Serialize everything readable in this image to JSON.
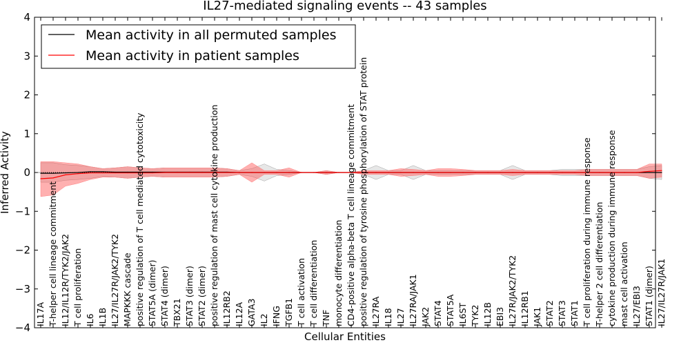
{
  "chart_data": {
    "type": "line",
    "title": "IL27-mediated signaling events -- 43 samples",
    "xlabel": "Cellular Entities",
    "ylabel": "Inferred Activity",
    "ylim": [
      -4,
      4
    ],
    "yticks": [
      "−4",
      "−3",
      "−2",
      "−1",
      "0",
      "1",
      "2",
      "3",
      "4"
    ],
    "legend_position": "top-left",
    "categories": [
      "IL17A",
      "T-helper cell lineage commitment",
      "IL12/IL12R/TYK2/JAK2",
      "T cell proliferation",
      "IL6",
      "IL1B",
      "IL27/IL27R/JAK2/TYK2",
      "MAPKKK cascade",
      "positive regulation of T cell mediated cytotoxicity",
      "STAT5A (dimer)",
      "STAT4 (dimer)",
      "TBX21",
      "STAT3 (dimer)",
      "STAT2 (dimer)",
      "positive regulation of mast cell cytokine production",
      "IL12RB2",
      "IL12A",
      "GATA3",
      "IL2",
      "IFNG",
      "TGFB1",
      "T cell activation",
      "T cell differentiation",
      "TNF",
      "monocyte differentiation",
      "CD4-positive alpha-beta T cell lineage commitment",
      "positive regulation of tyrosine phosphorylation of STAT protein",
      "IL27RA",
      "IL18",
      "IL27",
      "IL27RA/JAK1",
      "JAK2",
      "STAT4",
      "STAT5A",
      "IL6ST",
      "TYK2",
      "IL12B",
      "EBI3",
      "IL27R/JAK2/TYK2",
      "IL12RB1",
      "JAK1",
      "STAT2",
      "STAT3",
      "STAT1",
      "T cell proliferation during immune response",
      "T-helper 2 cell differentiation",
      "cytokine production during immune response",
      "mast cell activation",
      "IL27/EBI3",
      "STAT1 (dimer)",
      "IL27/IL27R/JAK1"
    ],
    "series": [
      {
        "name": "Mean activity in all permuted samples",
        "color": "#000000",
        "values": [
          -0.02,
          -0.02,
          -0.01,
          0.0,
          0.02,
          0.02,
          0.01,
          0.01,
          0.01,
          0.01,
          0.01,
          0.01,
          0.01,
          0.01,
          0.01,
          0.01,
          0.0,
          0.0,
          0.0,
          0.0,
          0.0,
          0.0,
          0.0,
          0.0,
          0.0,
          0.0,
          0.0,
          0.0,
          0.0,
          0.0,
          0.0,
          0.0,
          0.0,
          0.0,
          0.0,
          0.0,
          0.0,
          0.0,
          0.0,
          0.0,
          0.0,
          0.0,
          0.0,
          0.0,
          0.0,
          0.0,
          0.0,
          0.0,
          0.0,
          0.0,
          0.0
        ],
        "band_upper": [
          0.25,
          0.25,
          0.2,
          0.18,
          0.15,
          0.1,
          0.12,
          0.15,
          0.12,
          0.1,
          0.12,
          0.12,
          0.12,
          0.12,
          0.12,
          0.1,
          0.05,
          0.1,
          0.22,
          0.08,
          0.05,
          0.0,
          0.0,
          0.05,
          0.0,
          0.0,
          0.05,
          0.18,
          0.05,
          0.05,
          0.18,
          0.05,
          0.05,
          0.05,
          0.05,
          0.05,
          0.05,
          0.05,
          0.18,
          0.05,
          0.05,
          0.05,
          0.08,
          0.08,
          0.08,
          0.08,
          0.08,
          0.08,
          0.08,
          0.15,
          0.18
        ],
        "band_lower": [
          -0.25,
          -0.25,
          -0.2,
          -0.18,
          -0.15,
          -0.1,
          -0.12,
          -0.15,
          -0.12,
          -0.1,
          -0.12,
          -0.12,
          -0.12,
          -0.12,
          -0.12,
          -0.1,
          -0.05,
          -0.1,
          -0.22,
          -0.08,
          -0.05,
          0.0,
          0.0,
          -0.05,
          0.0,
          0.0,
          -0.05,
          -0.18,
          -0.05,
          -0.05,
          -0.18,
          -0.05,
          -0.05,
          -0.05,
          -0.05,
          -0.05,
          -0.05,
          -0.05,
          -0.18,
          -0.05,
          -0.05,
          -0.05,
          -0.08,
          -0.08,
          -0.08,
          -0.08,
          -0.08,
          -0.08,
          -0.08,
          -0.15,
          -0.18
        ]
      },
      {
        "name": "Mean activity in patient samples",
        "color": "#ff0000",
        "values": [
          -0.16,
          -0.14,
          -0.06,
          -0.03,
          -0.01,
          -0.01,
          -0.01,
          -0.01,
          -0.01,
          -0.01,
          0.0,
          0.0,
          0.0,
          0.0,
          0.0,
          0.0,
          0.0,
          0.0,
          0.0,
          0.0,
          0.0,
          0.0,
          0.0,
          0.0,
          0.0,
          0.0,
          0.0,
          0.0,
          0.0,
          0.0,
          0.0,
          0.0,
          0.0,
          0.0,
          0.0,
          0.0,
          0.0,
          0.0,
          0.0,
          0.0,
          0.0,
          0.0,
          0.0,
          0.0,
          0.0,
          0.0,
          0.0,
          0.0,
          0.0,
          0.03,
          0.05
        ],
        "band_upper": [
          0.28,
          0.28,
          0.25,
          0.22,
          0.15,
          0.1,
          0.12,
          0.15,
          0.12,
          0.1,
          0.12,
          0.12,
          0.12,
          0.12,
          0.12,
          0.1,
          0.05,
          0.25,
          0.05,
          0.05,
          0.12,
          0.0,
          0.0,
          0.05,
          0.0,
          0.0,
          0.05,
          0.05,
          0.05,
          0.1,
          0.08,
          0.05,
          0.1,
          0.1,
          0.08,
          0.05,
          0.05,
          0.05,
          0.08,
          0.05,
          0.05,
          0.05,
          0.05,
          0.05,
          0.08,
          0.08,
          0.08,
          0.08,
          0.08,
          0.22,
          0.22
        ],
        "band_lower": [
          -0.62,
          -0.58,
          -0.35,
          -0.28,
          -0.18,
          -0.12,
          -0.12,
          -0.15,
          -0.12,
          -0.1,
          -0.12,
          -0.12,
          -0.12,
          -0.12,
          -0.12,
          -0.1,
          -0.05,
          -0.25,
          -0.05,
          -0.05,
          -0.12,
          0.0,
          0.0,
          -0.05,
          0.0,
          0.0,
          -0.05,
          -0.05,
          -0.05,
          -0.1,
          -0.08,
          -0.05,
          -0.1,
          -0.1,
          -0.08,
          -0.05,
          -0.05,
          -0.05,
          -0.08,
          -0.05,
          -0.05,
          -0.05,
          -0.05,
          -0.05,
          -0.08,
          -0.08,
          -0.08,
          -0.08,
          -0.08,
          -0.15,
          -0.12
        ]
      }
    ]
  }
}
